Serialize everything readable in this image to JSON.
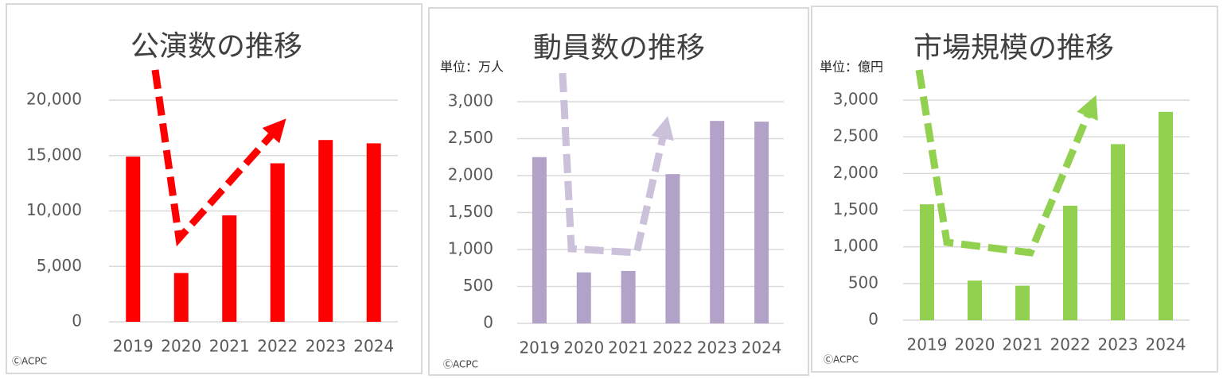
{
  "chart_data": [
    {
      "type": "bar",
      "title": "公演数の推移",
      "annotation": "ⒸACPC",
      "categories": [
        "2019",
        "2020",
        "2021",
        "2022",
        "2023",
        "2024"
      ],
      "values": [
        14900,
        4400,
        9600,
        14300,
        16400,
        16100
      ],
      "color": "#ff0000",
      "ylim": [
        0,
        20000
      ],
      "yticks": [
        0,
        {
          "value": 5000,
          "label": "5,000"
        },
        {
          "value": 10000,
          "label": "10,000"
        },
        {
          "value": 15000,
          "label": "15,000"
        },
        {
          "value": 20000,
          "label": "20,000"
        }
      ],
      "grid": true
    },
    {
      "type": "bar",
      "title": "動員数の推移",
      "subtitle": "単位：万人",
      "annotation": "ⒸACPC",
      "categories": [
        "2019",
        "2020",
        "2021",
        "2022",
        "2023",
        "2024"
      ],
      "values": [
        2250,
        690,
        710,
        2020,
        2740,
        2730
      ],
      "color": "#b3a2c7",
      "ylim": [
        0,
        3000
      ],
      "yticks": [
        0,
        500,
        {
          "value": 1000,
          "label": "1,000"
        },
        {
          "value": 1500,
          "label": "1,500"
        },
        {
          "value": 2000,
          "label": "2,000"
        },
        {
          "value": 2500,
          "label": "2,500"
        },
        {
          "value": 3000,
          "label": "3,000"
        }
      ],
      "grid": true
    },
    {
      "type": "bar",
      "title": "市場規模の推移",
      "subtitle": "単位：億円",
      "annotation": "ⒸACPC",
      "categories": [
        "2019",
        "2020",
        "2021",
        "2022",
        "2023",
        "2024"
      ],
      "values": [
        1580,
        540,
        470,
        1560,
        2400,
        2840
      ],
      "color": "#92d050",
      "ylim": [
        0,
        3000
      ],
      "yticks": [
        0,
        500,
        {
          "value": 1000,
          "label": "1,000"
        },
        {
          "value": 1500,
          "label": "1,500"
        },
        {
          "value": 2000,
          "label": "2,000"
        },
        {
          "value": 2500,
          "label": "2,500"
        },
        {
          "value": 3000,
          "label": "3,000"
        }
      ],
      "grid": true
    }
  ]
}
